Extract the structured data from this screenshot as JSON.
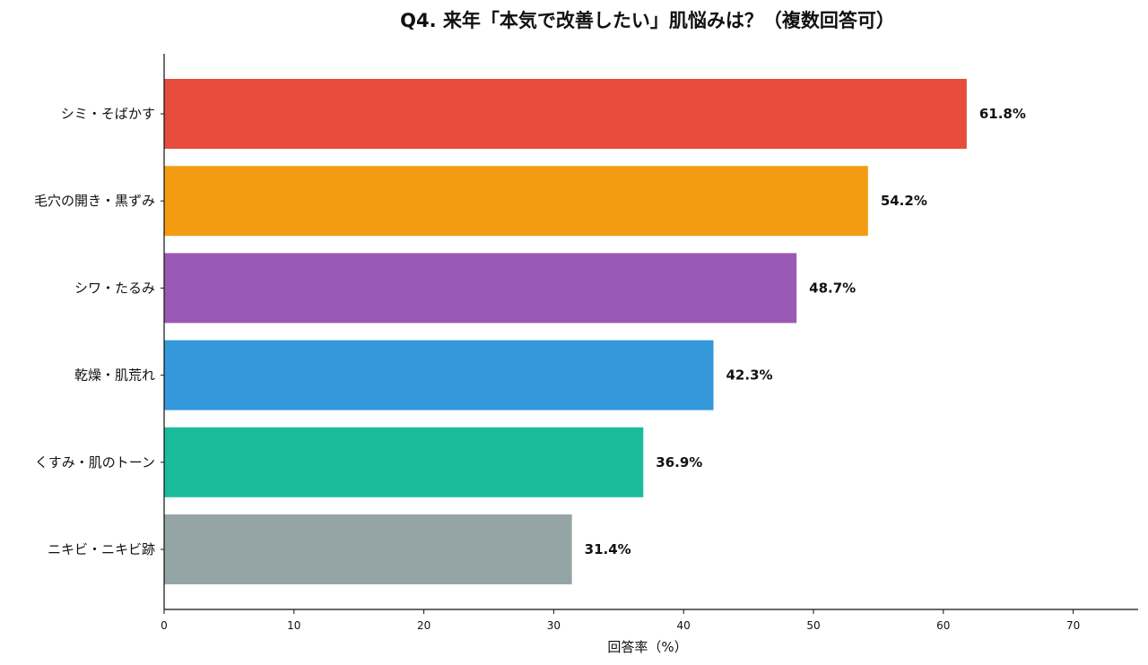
{
  "chart_data": {
    "type": "bar",
    "orientation": "horizontal",
    "title": "Q4. 来年「本気で改善したい」肌悩みは？（複数回答可）",
    "xlabel": "回答率（%）",
    "ylabel": "",
    "xlim": [
      0,
      75
    ],
    "xticks": [
      0,
      10,
      20,
      30,
      40,
      50,
      60,
      70
    ],
    "grid": false,
    "categories": [
      "シミ・そばかす",
      "毛穴の開き・黒ずみ",
      "シワ・たるみ",
      "乾燥・肌荒れ",
      "くすみ・肌のトーン",
      "ニキビ・ニキビ跡"
    ],
    "values": [
      61.8,
      54.2,
      48.7,
      42.3,
      36.9,
      31.4
    ],
    "value_labels": [
      "61.8%",
      "54.2%",
      "48.7%",
      "42.3%",
      "36.9%",
      "31.4%"
    ],
    "colors": [
      "#e74c3c",
      "#f39c12",
      "#9b59b6",
      "#3498db",
      "#1abc9c",
      "#95a5a6"
    ]
  }
}
